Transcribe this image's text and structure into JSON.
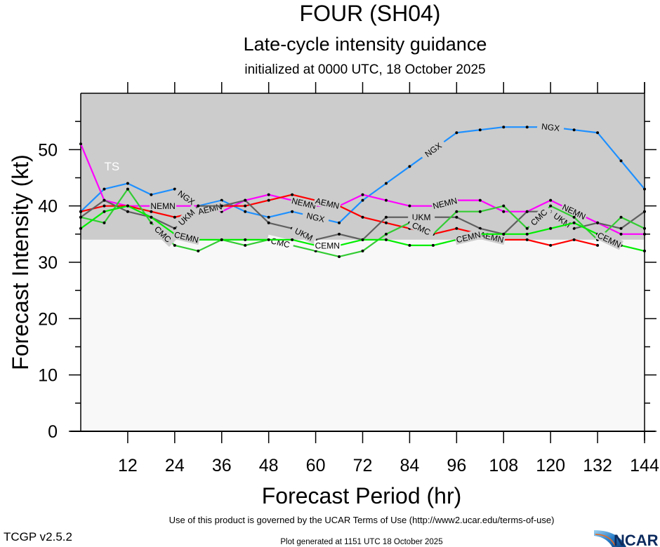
{
  "chart_data": {
    "type": "line",
    "title": "FOUR (SH04)",
    "subtitle": "Late-cycle intensity guidance",
    "subtitle2": "initialized at 0000 UTC, 18 October 2025",
    "xlabel": "Forecast Period (hr)",
    "ylabel": "Forecast Intensity (kt)",
    "xlim": [
      0,
      144
    ],
    "ylim": [
      0,
      60
    ],
    "xticks": [
      12,
      24,
      36,
      48,
      60,
      72,
      84,
      96,
      108,
      120,
      132,
      144
    ],
    "yticks": [
      0,
      10,
      20,
      30,
      40,
      50
    ],
    "grid": false,
    "bands": [
      {
        "name": "tropical-storm",
        "label": "TS",
        "from": 34,
        "to": 60,
        "color": "#cccccc"
      },
      {
        "name": "below-ts",
        "label": "",
        "from": 0,
        "to": 34,
        "color": "#f8f8f8"
      }
    ],
    "x": [
      0,
      6,
      12,
      18,
      24,
      30,
      36,
      42,
      48,
      54,
      60,
      66,
      72,
      78,
      84,
      90,
      96,
      102,
      108,
      114,
      120,
      126,
      132,
      138,
      144
    ],
    "series": [
      {
        "name": "NGX",
        "color": "#1e90ff",
        "values": [
          39,
          43,
          44,
          42,
          43,
          40,
          41,
          39,
          38,
          39,
          38,
          37,
          41,
          44,
          47,
          50,
          53,
          53.5,
          54,
          54,
          54,
          53.5,
          53,
          48,
          43
        ],
        "label_at": [
          27,
          60,
          90,
          120
        ]
      },
      {
        "name": "NEMN",
        "color": "#ff00ff",
        "values": [
          51,
          41,
          40,
          40,
          40,
          40,
          39,
          41,
          42,
          41,
          40,
          40,
          42,
          41,
          40,
          40,
          41,
          41,
          39,
          39,
          41,
          39,
          37,
          35,
          35
        ],
        "label_at": [
          21,
          57,
          93,
          126
        ]
      },
      {
        "name": "AEMN",
        "color": "#ff0000",
        "values": [
          39,
          40,
          40,
          39,
          38,
          39,
          40,
          40,
          41,
          42,
          41,
          40,
          38,
          37,
          36,
          35,
          36,
          35,
          34,
          34,
          33,
          34,
          33,
          null,
          null
        ],
        "label_at": [
          33,
          63,
          105,
          135
        ]
      },
      {
        "name": "UKM",
        "color": "#606060",
        "values": [
          38,
          41,
          39,
          38,
          36,
          40,
          40,
          41,
          37,
          36,
          34,
          35,
          34,
          38,
          38,
          38,
          38,
          36,
          35,
          39,
          39,
          36,
          37,
          36,
          39
        ],
        "label_at": [
          27,
          57,
          87,
          123
        ]
      },
      {
        "name": "CMC",
        "color": "#33cc33",
        "values": [
          38,
          37,
          43,
          37,
          33,
          32,
          34,
          33,
          34,
          33,
          32,
          31,
          32,
          35,
          37,
          35,
          39,
          39,
          40,
          36,
          40,
          38,
          34,
          38,
          36
        ],
        "label_at": [
          21,
          51,
          87,
          117
        ]
      },
      {
        "name": "CEMN",
        "color": "#00ee00",
        "values": [
          36,
          39,
          40,
          38,
          35,
          34,
          34,
          34,
          34,
          34,
          33,
          33,
          34,
          34,
          33,
          33,
          34,
          35,
          35,
          35,
          36,
          37,
          35,
          33,
          32
        ],
        "label_at": [
          27,
          63,
          99,
          135
        ]
      }
    ],
    "annotations": [
      "TS"
    ]
  },
  "footer": {
    "terms": "Use of this product is governed by the UCAR Terms of Use (http://www2.ucar.edu/terms-of-use)",
    "version": "TCGP v2.5.2",
    "generated": "Plot generated at 1151 UTC   18 October 2025",
    "logo": "NCAR"
  }
}
